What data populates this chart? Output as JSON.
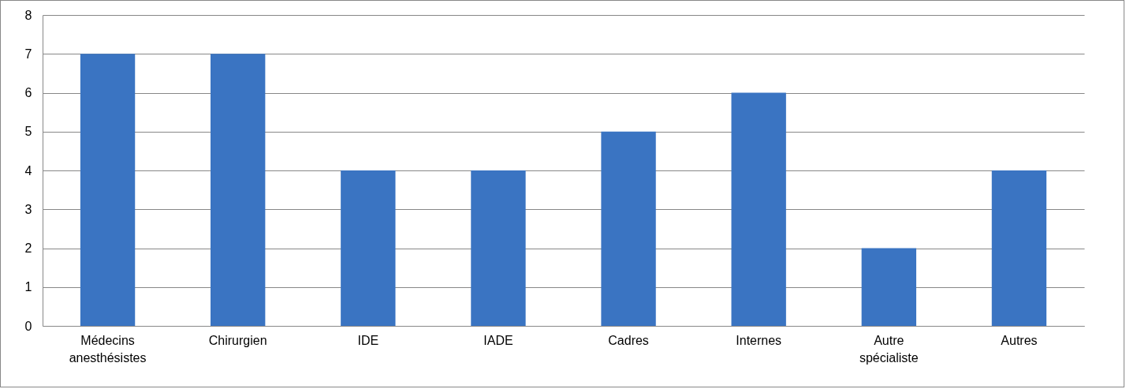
{
  "chart_data": {
    "type": "bar",
    "categories": [
      "Médecins anesthésistes",
      "Chirurgien",
      "IDE",
      "IADE",
      "Cadres",
      "Internes",
      "Autre spécialiste",
      "Autres"
    ],
    "values": [
      7,
      7,
      4,
      4,
      5,
      6,
      2,
      4
    ],
    "color": "#3a74c2",
    "ylim": [
      0,
      8
    ],
    "yticks": [
      0,
      1,
      2,
      3,
      4,
      5,
      6,
      7,
      8
    ],
    "grid": "y"
  }
}
